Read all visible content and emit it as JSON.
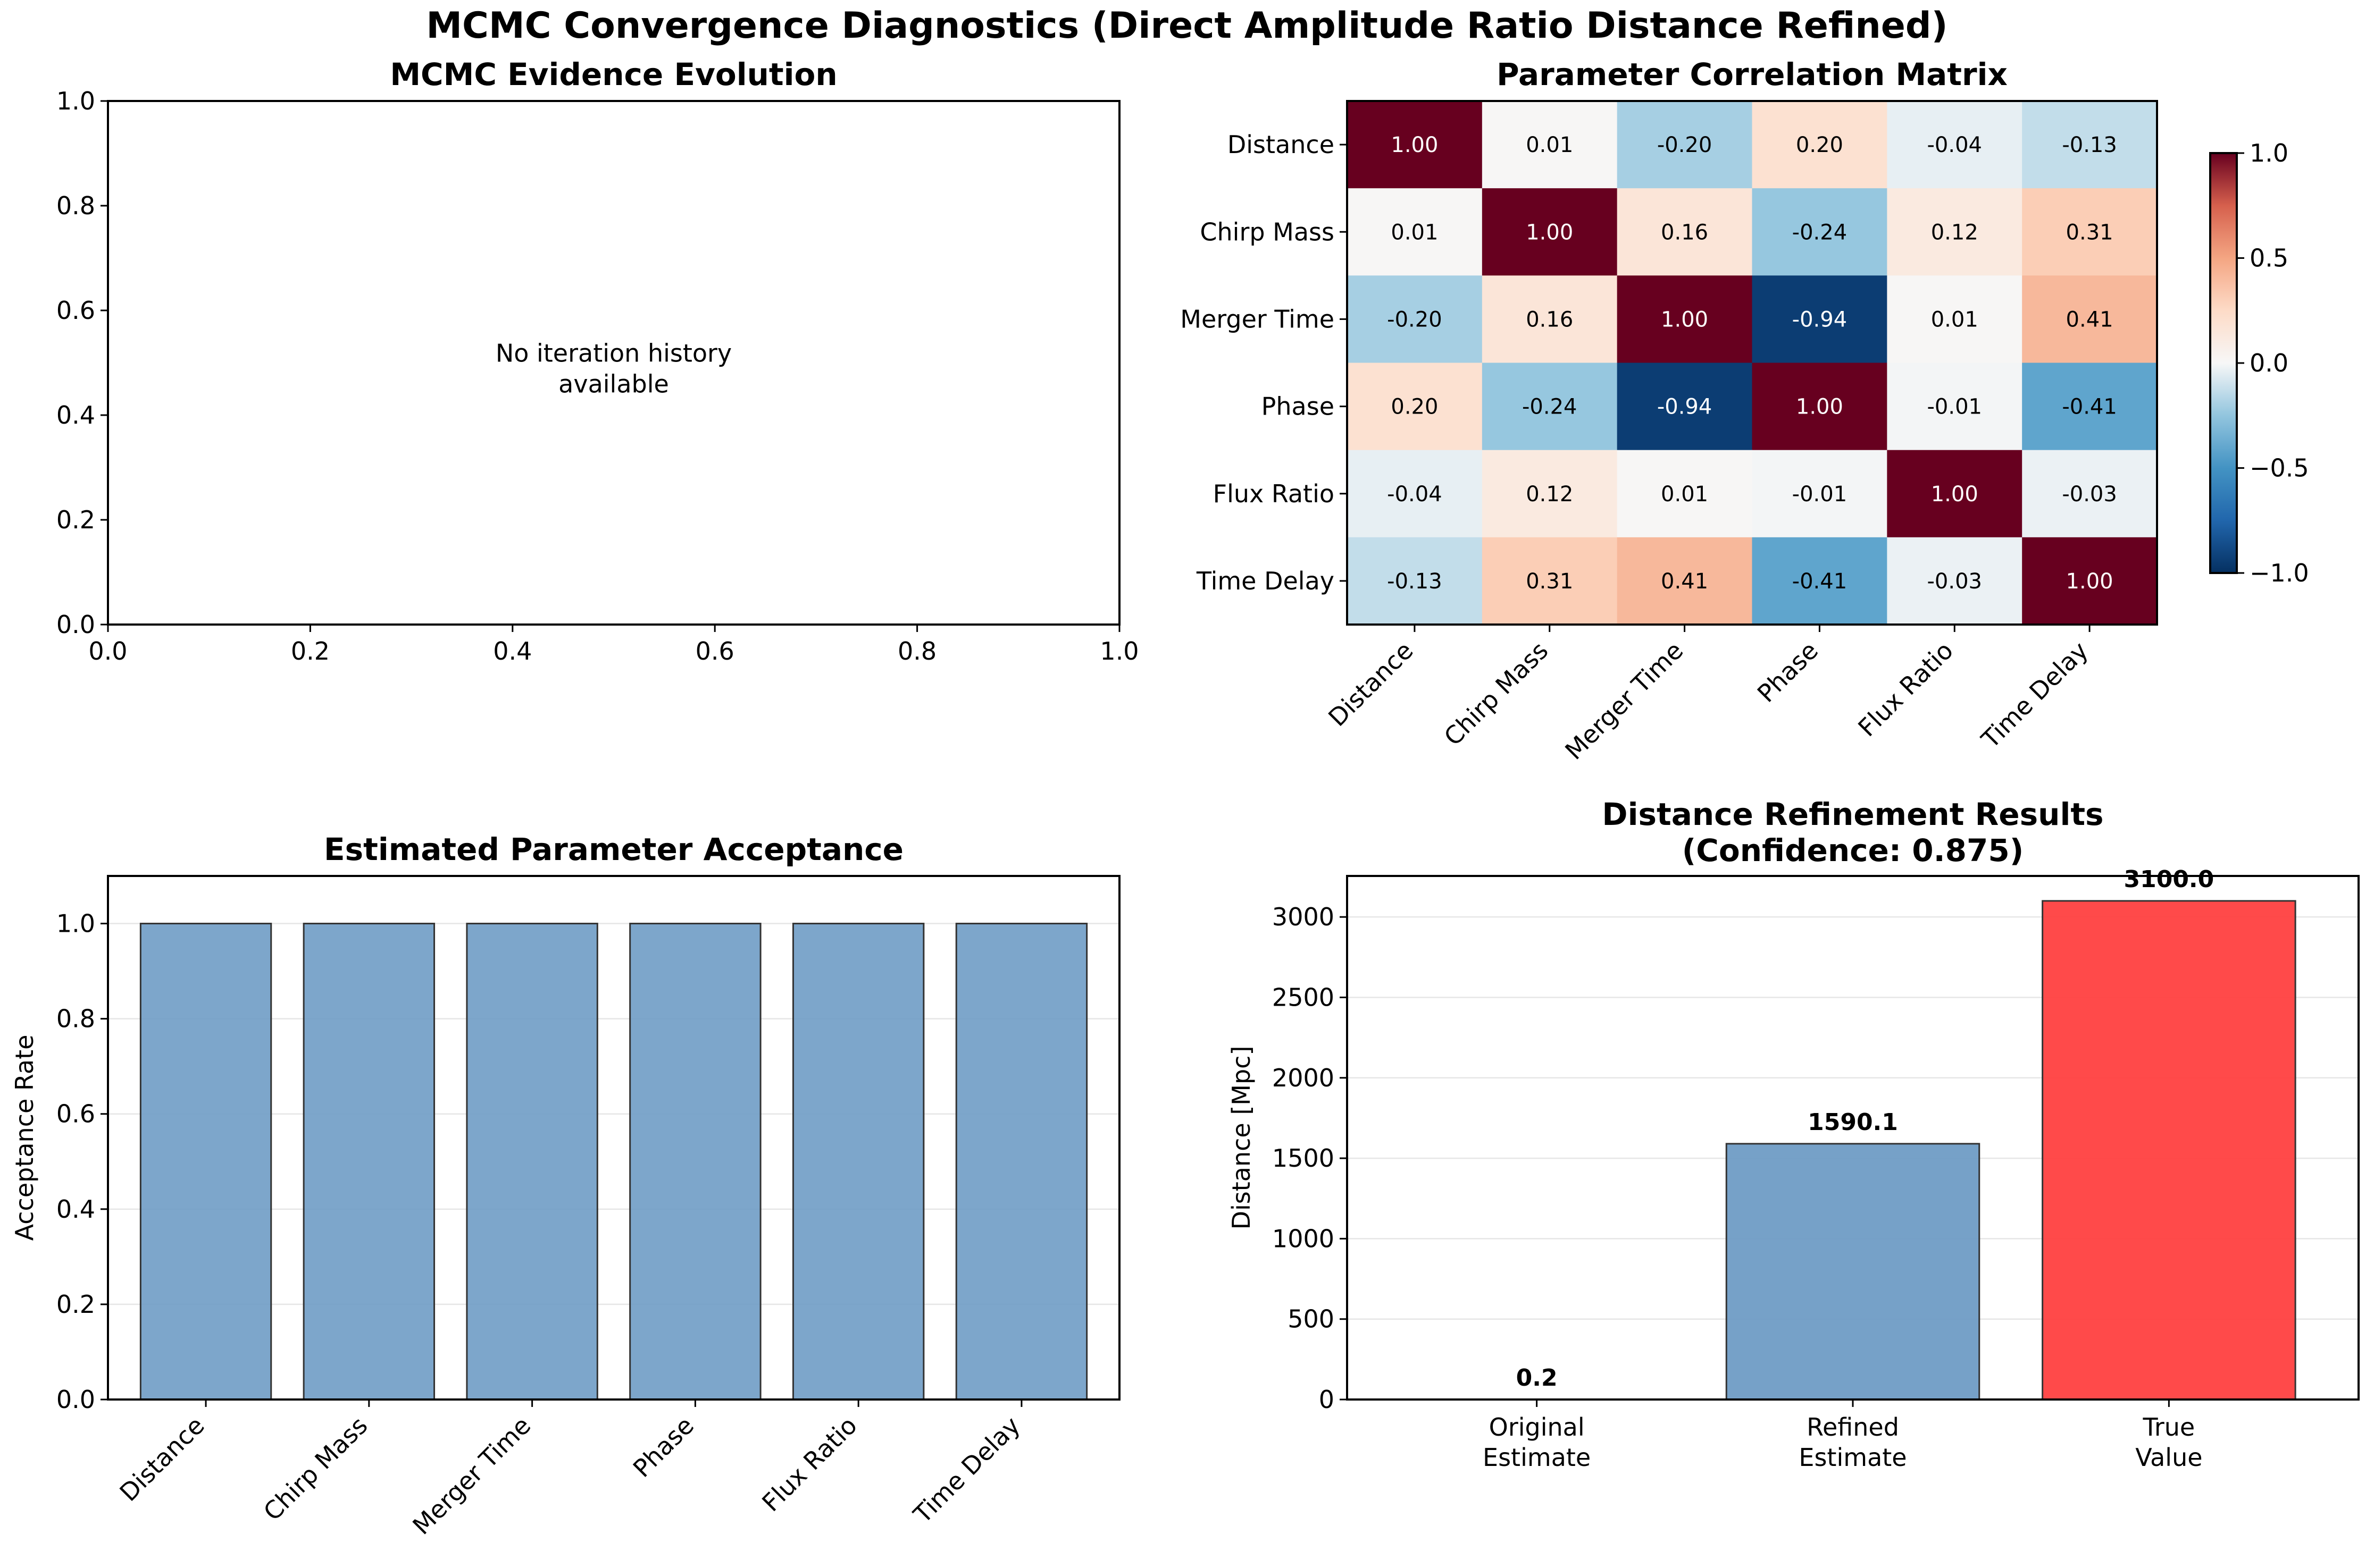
{
  "figure": {
    "suptitle": "MCMC Convergence Diagnostics (Direct Amplitude Ratio Distance Refined)"
  },
  "chart_data": [
    {
      "type": "line",
      "title": "MCMC Evidence Evolution",
      "xlabel": "",
      "ylabel": "",
      "xlim": [
        0,
        1
      ],
      "ylim": [
        0,
        1
      ],
      "xticks": [
        "0.0",
        "0.2",
        "0.4",
        "0.6",
        "0.8",
        "1.0"
      ],
      "yticks": [
        "0.0",
        "0.2",
        "0.4",
        "0.6",
        "0.8",
        "1.0"
      ],
      "series": [],
      "annotation": [
        "No iteration history",
        "available"
      ],
      "grid": false
    },
    {
      "type": "heatmap",
      "title": "Parameter Correlation Matrix",
      "row_labels": [
        "Distance",
        "Chirp Mass",
        "Merger Time",
        "Phase",
        "Flux Ratio",
        "Time Delay"
      ],
      "col_labels": [
        "Distance",
        "Chirp Mass",
        "Merger Time",
        "Phase",
        "Flux Ratio",
        "Time Delay"
      ],
      "values": [
        [
          1.0,
          0.01,
          -0.2,
          0.2,
          -0.04,
          -0.13
        ],
        [
          0.01,
          1.0,
          0.16,
          -0.24,
          0.12,
          0.31
        ],
        [
          -0.2,
          0.16,
          1.0,
          -0.94,
          0.01,
          0.41
        ],
        [
          0.2,
          -0.24,
          -0.94,
          1.0,
          -0.01,
          -0.41
        ],
        [
          -0.04,
          0.12,
          0.01,
          -0.01,
          1.0,
          -0.03
        ],
        [
          -0.13,
          0.31,
          0.41,
          -0.41,
          -0.03,
          1.0
        ]
      ],
      "colormap": "RdBu_r",
      "vmin": -1.0,
      "vmax": 1.0,
      "colorbar_ticks": [
        "1.0",
        "0.5",
        "0.0",
        "−0.5",
        "−1.0"
      ]
    },
    {
      "type": "bar",
      "title": "Estimated Parameter Acceptance",
      "categories": [
        "Distance",
        "Chirp Mass",
        "Merger Time",
        "Phase",
        "Flux Ratio",
        "Time Delay"
      ],
      "values": [
        1.0,
        1.0,
        1.0,
        1.0,
        1.0,
        1.0
      ],
      "xlabel": "",
      "ylabel": "Acceptance Rate",
      "ylim": [
        0,
        1.1
      ],
      "yticks": [
        "0.0",
        "0.2",
        "0.4",
        "0.6",
        "0.8",
        "1.0"
      ],
      "bar_color": "#6f9cc5",
      "grid": "y"
    },
    {
      "type": "bar",
      "title": [
        "Distance Refinement Results",
        "(Confidence: 0.875)"
      ],
      "categories": [
        [
          "Original",
          "Estimate"
        ],
        [
          "Refined",
          "Estimate"
        ],
        [
          "True",
          "Value"
        ]
      ],
      "values": [
        0.2,
        1590.1,
        3100.0
      ],
      "value_labels": [
        "0.2",
        "1590.1",
        "3100.0"
      ],
      "xlabel": "",
      "ylabel": "Distance [Mpc]",
      "ylim": [
        0,
        3255
      ],
      "yticks": [
        "0",
        "500",
        "1000",
        "1500",
        "2000",
        "2500",
        "3000"
      ],
      "bar_colors": [
        "#6f9cc5",
        "#6f9cc5",
        "#ff4040"
      ],
      "grid": "y"
    }
  ]
}
